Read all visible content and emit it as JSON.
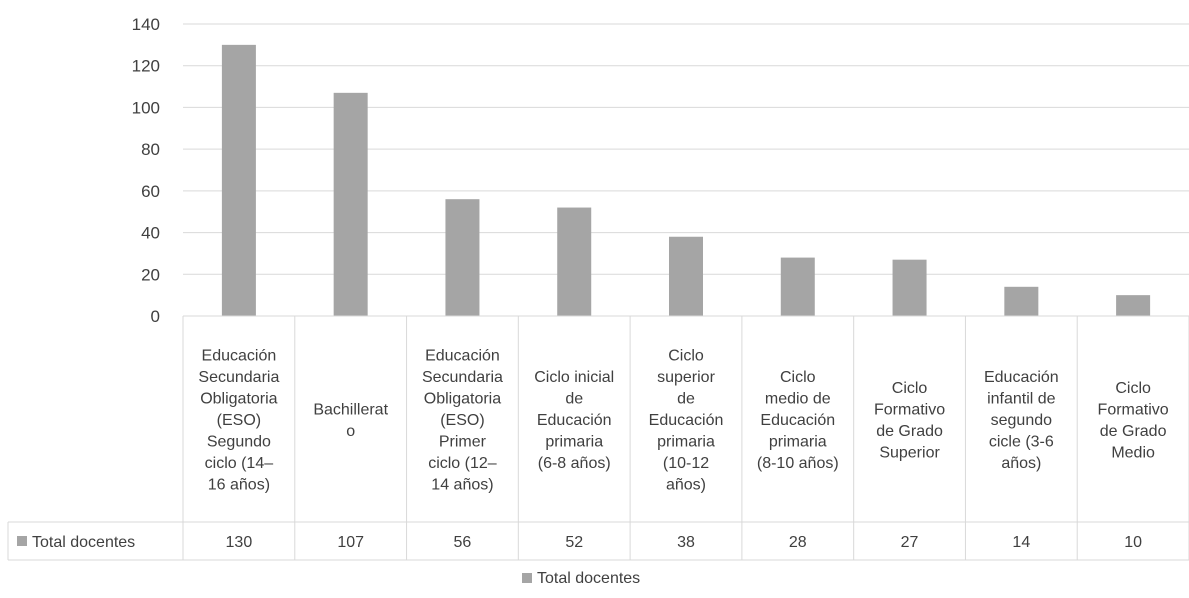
{
  "chart_data": {
    "type": "bar",
    "title": "",
    "xlabel": "",
    "ylabel": "",
    "ylim": [
      0,
      140
    ],
    "yticks": [
      0,
      20,
      40,
      60,
      80,
      100,
      120,
      140
    ],
    "grid": true,
    "legend_position": "bottom",
    "data_table": true,
    "categories": [
      [
        "Educación",
        "Secundaria",
        "Obligatoria",
        "(ESO)",
        "Segundo",
        "ciclo (14–",
        "16 años)"
      ],
      [
        "Bachillerat",
        "o"
      ],
      [
        "Educación",
        "Secundaria",
        "Obligatoria",
        "(ESO)",
        "Primer",
        "ciclo (12–",
        "14 años)"
      ],
      [
        "Ciclo inicial",
        "de",
        "Educación",
        "primaria",
        "(6-8 años)"
      ],
      [
        "Ciclo",
        "superior",
        "de",
        "Educación",
        "primaria",
        "(10-12",
        "años)"
      ],
      [
        "Ciclo",
        "medio de",
        "Educación",
        "primaria",
        "(8-10 años)"
      ],
      [
        "Ciclo",
        "Formativo",
        "de Grado",
        "Superior"
      ],
      [
        "Educación",
        "infantil de",
        "segundo",
        "cicle (3-6",
        "años)"
      ],
      [
        "Ciclo",
        "Formativo",
        "de Grado",
        "Medio"
      ]
    ],
    "series": [
      {
        "name": "Total docentes",
        "values": [
          130,
          107,
          56,
          52,
          38,
          28,
          27,
          14,
          10
        ],
        "color": "#a5a5a5"
      }
    ]
  }
}
